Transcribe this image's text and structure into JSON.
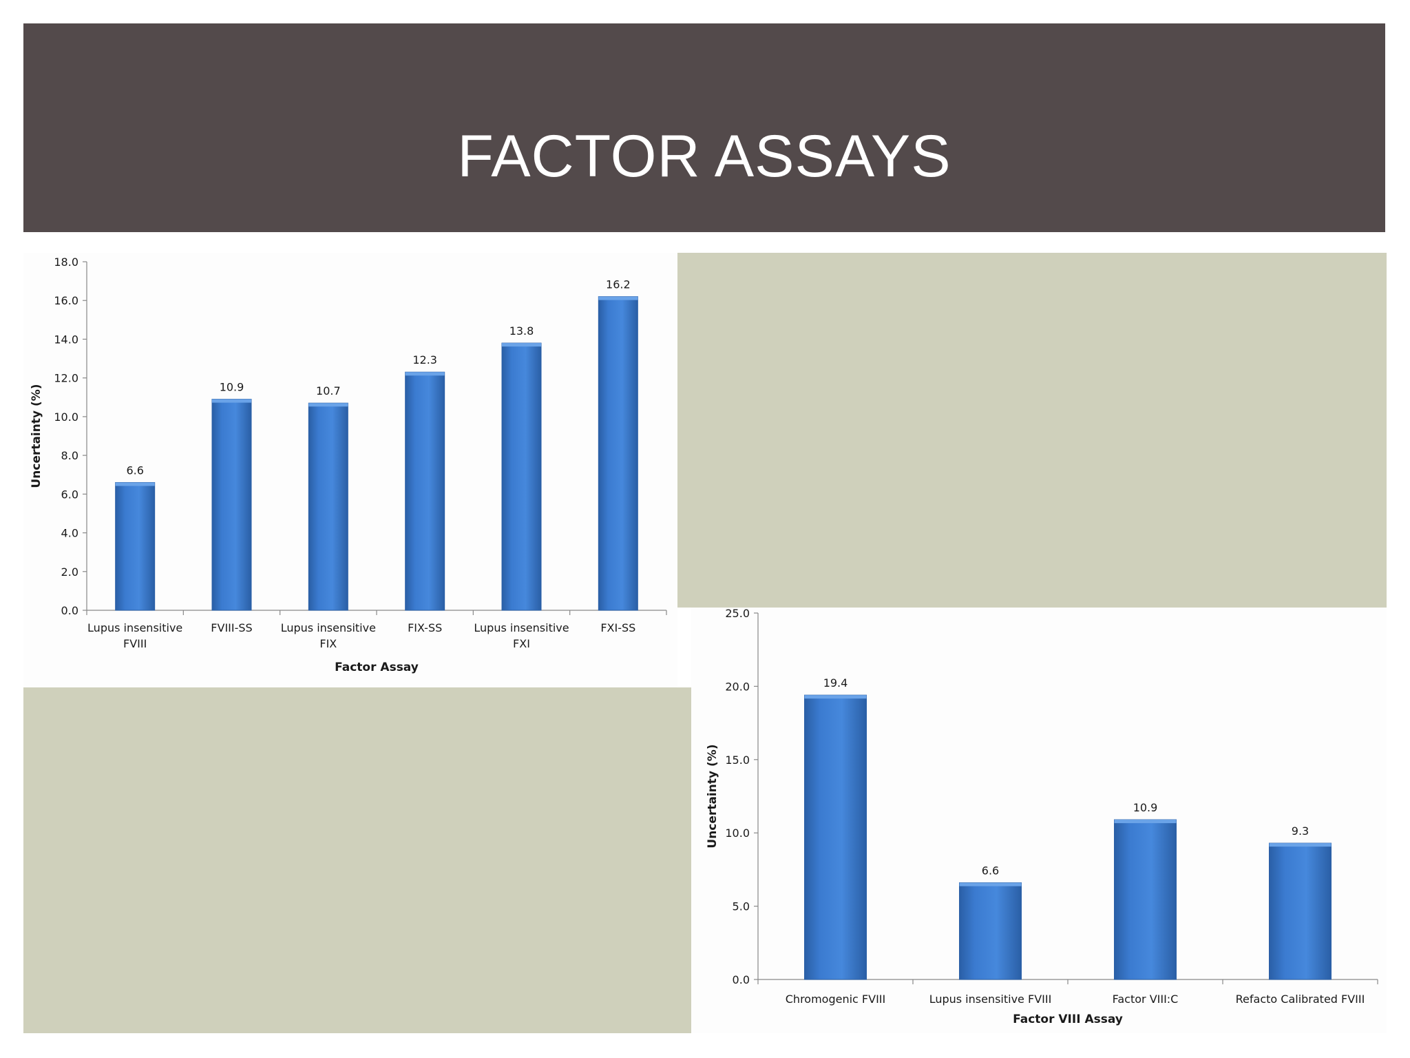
{
  "slide": {
    "title": "FACTOR ASSAYS"
  },
  "colors": {
    "title_band": "#534a4b",
    "panel": "#cfd0bb",
    "bar": "#3b7bd0",
    "bar_dark": "#2a5fa6"
  },
  "chart_data": [
    {
      "type": "bar",
      "categories": [
        [
          "Lupus insensitive",
          "FVIII"
        ],
        [
          "FVIII-SS"
        ],
        [
          "Lupus insensitive",
          "FIX"
        ],
        [
          "FIX-SS"
        ],
        [
          "Lupus insensitive",
          "FXI"
        ],
        [
          "FXI-SS"
        ]
      ],
      "values": [
        6.6,
        10.9,
        10.7,
        12.3,
        13.8,
        16.2
      ],
      "data_labels": [
        "6.6",
        "10.9",
        "10.7",
        "12.3",
        "13.8",
        "16.2"
      ],
      "xlabel": "Factor Assay",
      "ylabel": "Uncertainty (%)",
      "ylim": [
        0,
        18
      ],
      "yticks": [
        "0.0",
        "2.0",
        "4.0",
        "6.0",
        "8.0",
        "10.0",
        "12.0",
        "14.0",
        "16.0",
        "18.0"
      ],
      "grid": false,
      "legend": "none"
    },
    {
      "type": "bar",
      "categories": [
        [
          "Chromogenic FVIII"
        ],
        [
          "Lupus insensitive FVIII"
        ],
        [
          "Factor VIII:C"
        ],
        [
          "Refacto Calibrated FVIII"
        ]
      ],
      "values": [
        19.4,
        6.6,
        10.9,
        9.3
      ],
      "data_labels": [
        "19.4",
        "6.6",
        "10.9",
        "9.3"
      ],
      "xlabel": "Factor VIII Assay",
      "ylabel": "Uncertainty (%)",
      "ylim": [
        0,
        25
      ],
      "yticks": [
        "0.0",
        "5.0",
        "10.0",
        "15.0",
        "20.0",
        "25.0"
      ],
      "grid": false,
      "legend": "none"
    }
  ]
}
